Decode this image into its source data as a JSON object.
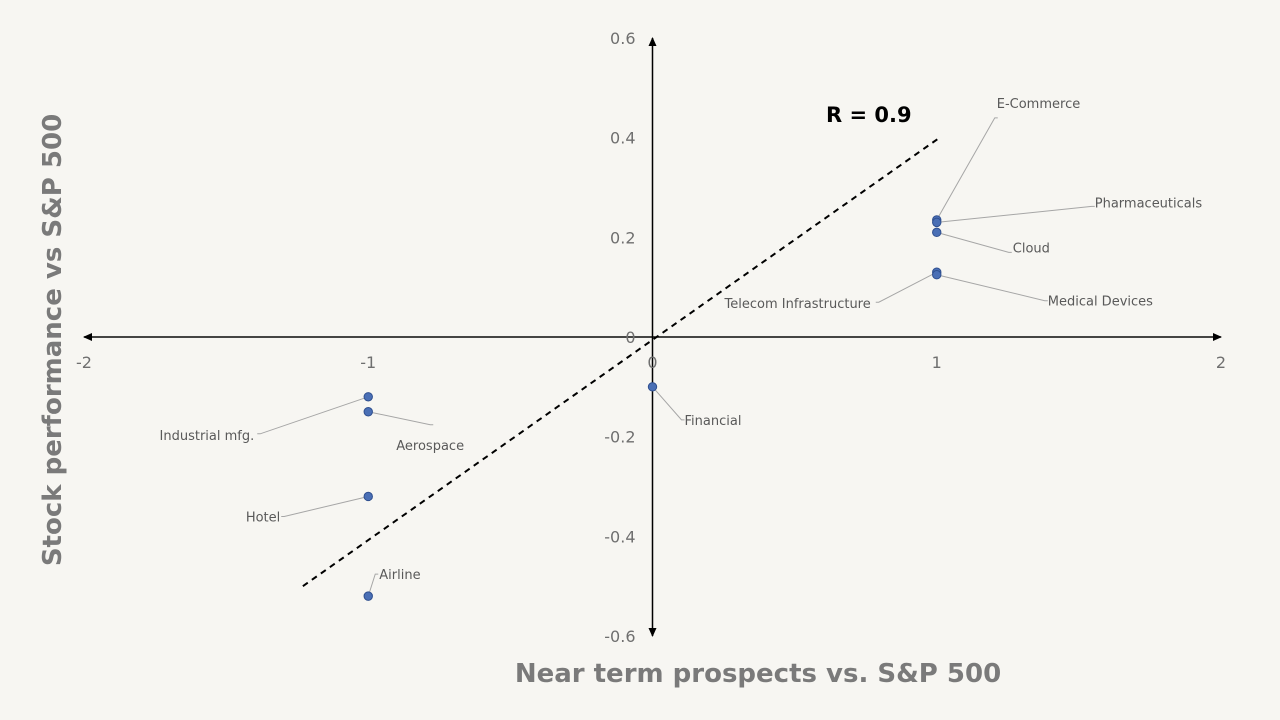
{
  "chart_data": {
    "type": "scatter",
    "xlabel": "Near term prospects vs. S&P 500",
    "ylabel": "Stock performance vs S&P 500",
    "xlim": [
      -2,
      2
    ],
    "ylim": [
      -0.6,
      0.6
    ],
    "x_ticks": [
      -2,
      -1,
      0,
      1,
      2
    ],
    "y_ticks": [
      0.6,
      0.4,
      0.2,
      0,
      -0.2,
      -0.4,
      -0.6
    ],
    "x_tick_labels": [
      "-2",
      "-1",
      "0",
      "1",
      "2"
    ],
    "y_tick_labels": [
      "0.6",
      "0.4",
      "0.2",
      "0",
      "-0.2",
      "-0.4",
      "-0.6"
    ],
    "grid": false,
    "annotation": "R = 0.9",
    "trendline": {
      "style": "dashed",
      "x": [
        -1.23,
        1.01
      ],
      "y": [
        -0.5,
        0.4
      ]
    },
    "points": [
      {
        "label": "E-Commerce",
        "x": 1,
        "y": 0.235
      },
      {
        "label": "Pharmaceuticals",
        "x": 1,
        "y": 0.23
      },
      {
        "label": "Cloud",
        "x": 1,
        "y": 0.21
      },
      {
        "label": "Telecom Infrastructure",
        "x": 1,
        "y": 0.13
      },
      {
        "label": "Medical Devices",
        "x": 1,
        "y": 0.125
      },
      {
        "label": "Financial",
        "x": 0,
        "y": -0.1
      },
      {
        "label": "Industrial mfg.",
        "x": -1,
        "y": -0.12
      },
      {
        "label": "Aerospace",
        "x": -1,
        "y": -0.15
      },
      {
        "label": "Hotel",
        "x": -1,
        "y": -0.32
      },
      {
        "label": "Airline",
        "x": -1,
        "y": -0.52
      }
    ],
    "colors": {
      "point_fill": "#4a6fb5",
      "point_stroke": "#2f4f8f",
      "axis": "#000000",
      "leader": "#a6a6a6",
      "tick_text": "#6f6f6f",
      "axis_title": "#7a7a7a",
      "background": "#f7f6f2"
    }
  }
}
